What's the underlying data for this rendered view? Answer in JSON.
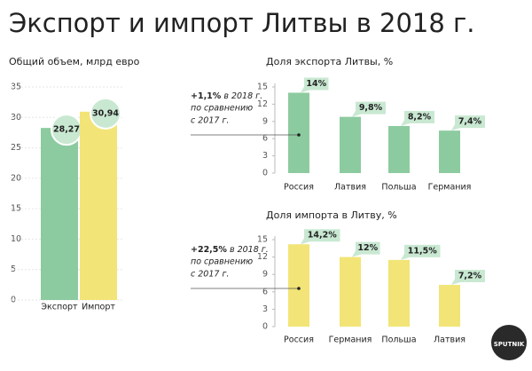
{
  "title": "Экспорт и импорт Литвы в 2018 г.",
  "logo": "SPUTNIK",
  "chart_data": [
    {
      "type": "bar",
      "title": "Общий объем, млрд евро",
      "categories": [
        "Экспорт",
        "Импорт"
      ],
      "values": [
        28.27,
        30.94
      ],
      "value_labels": [
        "28,27",
        "30,94"
      ],
      "colors": [
        "#8ccb9f",
        "#f2e477"
      ],
      "label_color": "#c9e8d2",
      "value_label_shape": "circle",
      "ylim": [
        0,
        35
      ],
      "yticks": [
        0,
        5,
        10,
        15,
        20,
        25,
        30,
        35
      ],
      "grid": true
    },
    {
      "type": "bar",
      "title": "Доля экспорта Литвы, %",
      "categories": [
        "Россия",
        "Латвия",
        "Польша",
        "Германия"
      ],
      "values": [
        14,
        9.8,
        8.2,
        7.4
      ],
      "value_labels": [
        "14%",
        "9,8%",
        "8,2%",
        "7,4%"
      ],
      "color": "#8ccb9f",
      "label_color": "#c9e8d2",
      "value_label_shape": "box",
      "ylim": [
        0,
        15
      ],
      "yticks": [
        0,
        3,
        6,
        9,
        12,
        15
      ],
      "grid": false,
      "annotation": {
        "highlight": "+1,1%",
        "lines": [
          "в 2018 г.",
          "по сравнению",
          "с 2017 г."
        ]
      }
    },
    {
      "type": "bar",
      "title": "Доля импорта в Литву, %",
      "categories": [
        "Россия",
        "Германия",
        "Польша",
        "Латвия"
      ],
      "values": [
        14.2,
        12,
        11.5,
        7.2
      ],
      "value_labels": [
        "14,2%",
        "12%",
        "11,5%",
        "7,2%"
      ],
      "color": "#f2e477",
      "label_color": "#c9e8d2",
      "value_label_shape": "box",
      "ylim": [
        0,
        15
      ],
      "yticks": [
        0,
        3,
        6,
        9,
        12,
        15
      ],
      "grid": false,
      "annotation": {
        "highlight": "+22,5%",
        "lines": [
          "в 2018 г.",
          "по сравнению",
          "с 2017 г."
        ]
      }
    }
  ]
}
